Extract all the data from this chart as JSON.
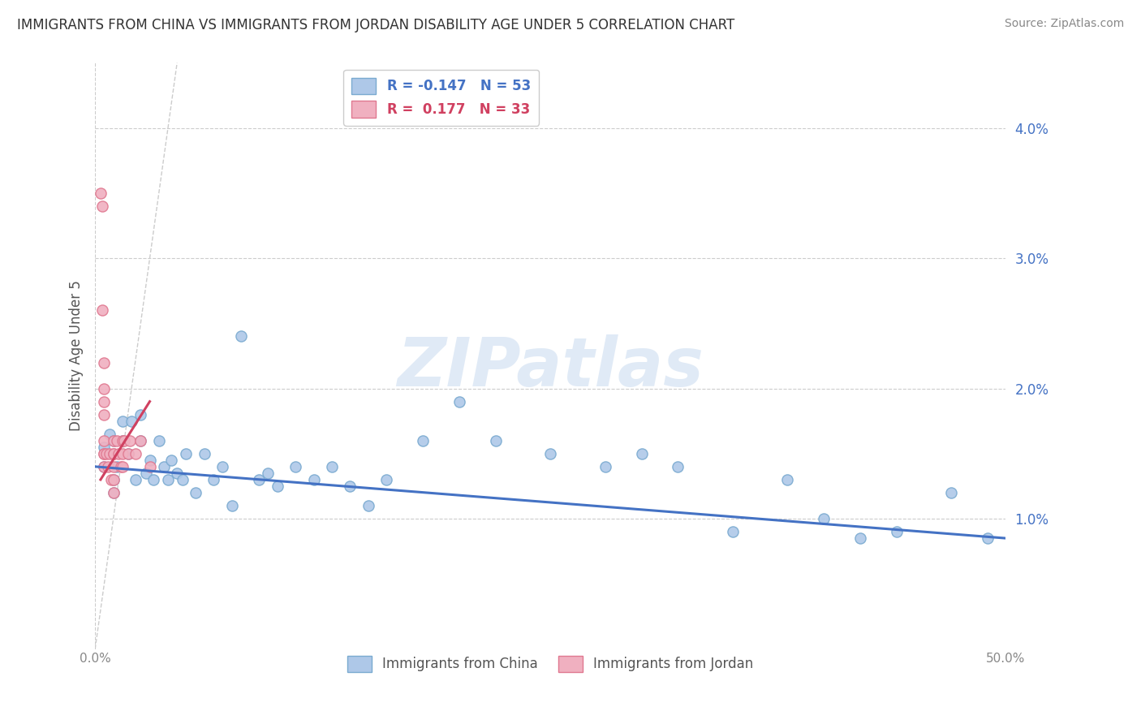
{
  "title": "IMMIGRANTS FROM CHINA VS IMMIGRANTS FROM JORDAN DISABILITY AGE UNDER 5 CORRELATION CHART",
  "source": "Source: ZipAtlas.com",
  "ylabel": "Disability Age Under 5",
  "xlim": [
    0.0,
    0.5
  ],
  "ylim": [
    0.0,
    0.045
  ],
  "ytick_vals": [
    0.01,
    0.02,
    0.03,
    0.04
  ],
  "ytick_labels": [
    "1.0%",
    "2.0%",
    "3.0%",
    "4.0%"
  ],
  "xtick_vals": [
    0.0,
    0.5
  ],
  "xtick_labels": [
    "0.0%",
    "50.0%"
  ],
  "china_R": "-0.147",
  "china_N": "53",
  "jordan_R": "0.177",
  "jordan_N": "33",
  "china_color": "#aec8e8",
  "jordan_color": "#f0b0c0",
  "china_edge_color": "#7aaad0",
  "jordan_edge_color": "#e07890",
  "china_line_color": "#4472c4",
  "jordan_line_color": "#d04060",
  "watermark_text": "ZIPatlas",
  "china_scatter_x": [
    0.005,
    0.005,
    0.008,
    0.01,
    0.01,
    0.01,
    0.012,
    0.015,
    0.015,
    0.018,
    0.02,
    0.022,
    0.025,
    0.025,
    0.028,
    0.03,
    0.032,
    0.035,
    0.038,
    0.04,
    0.042,
    0.045,
    0.048,
    0.05,
    0.055,
    0.06,
    0.065,
    0.07,
    0.075,
    0.08,
    0.09,
    0.095,
    0.1,
    0.11,
    0.12,
    0.13,
    0.14,
    0.15,
    0.16,
    0.18,
    0.2,
    0.22,
    0.25,
    0.28,
    0.3,
    0.32,
    0.35,
    0.38,
    0.4,
    0.42,
    0.44,
    0.47,
    0.49
  ],
  "china_scatter_y": [
    0.0155,
    0.014,
    0.0165,
    0.016,
    0.013,
    0.012,
    0.014,
    0.016,
    0.0175,
    0.015,
    0.0175,
    0.013,
    0.016,
    0.018,
    0.0135,
    0.0145,
    0.013,
    0.016,
    0.014,
    0.013,
    0.0145,
    0.0135,
    0.013,
    0.015,
    0.012,
    0.015,
    0.013,
    0.014,
    0.011,
    0.024,
    0.013,
    0.0135,
    0.0125,
    0.014,
    0.013,
    0.014,
    0.0125,
    0.011,
    0.013,
    0.016,
    0.019,
    0.016,
    0.015,
    0.014,
    0.015,
    0.014,
    0.009,
    0.013,
    0.01,
    0.0085,
    0.009,
    0.012,
    0.0085
  ],
  "jordan_scatter_x": [
    0.003,
    0.004,
    0.004,
    0.005,
    0.005,
    0.005,
    0.005,
    0.005,
    0.005,
    0.005,
    0.005,
    0.006,
    0.007,
    0.008,
    0.009,
    0.01,
    0.01,
    0.01,
    0.01,
    0.01,
    0.01,
    0.012,
    0.013,
    0.014,
    0.015,
    0.015,
    0.015,
    0.016,
    0.018,
    0.019,
    0.022,
    0.025,
    0.03
  ],
  "jordan_scatter_y": [
    0.035,
    0.034,
    0.026,
    0.022,
    0.02,
    0.019,
    0.018,
    0.016,
    0.015,
    0.015,
    0.014,
    0.015,
    0.014,
    0.015,
    0.013,
    0.016,
    0.015,
    0.014,
    0.013,
    0.012,
    0.015,
    0.016,
    0.015,
    0.014,
    0.016,
    0.015,
    0.014,
    0.016,
    0.015,
    0.016,
    0.015,
    0.016,
    0.014
  ],
  "china_trend_x": [
    0.0,
    0.5
  ],
  "china_trend_y": [
    0.014,
    0.0085
  ],
  "jordan_trend_x": [
    0.003,
    0.03
  ],
  "jordan_trend_y": [
    0.013,
    0.019
  ],
  "diag_line_x": [
    0.0,
    0.045
  ],
  "diag_line_y": [
    0.0,
    0.045
  ],
  "bg_color": "#ffffff",
  "grid_color": "#cccccc"
}
